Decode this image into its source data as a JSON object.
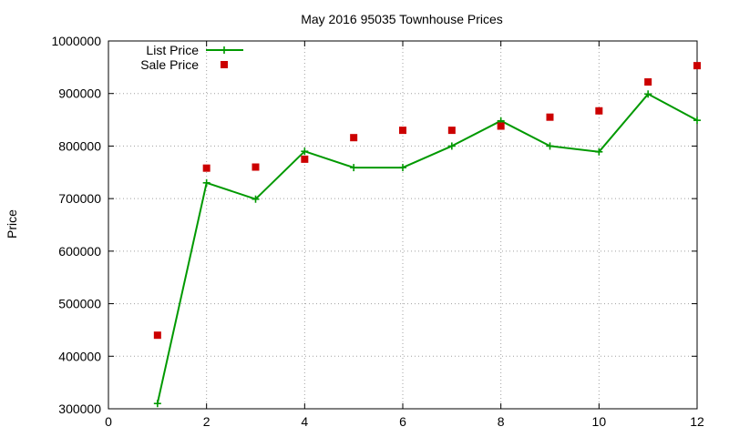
{
  "chart_data": {
    "type": "line",
    "title": "May 2016 95035 Townhouse Prices",
    "xlabel": "",
    "ylabel": "Price",
    "xlim": [
      0,
      12
    ],
    "ylim": [
      300000,
      1000000
    ],
    "xticks": [
      0,
      2,
      4,
      6,
      8,
      10,
      12
    ],
    "yticks": [
      300000,
      400000,
      500000,
      600000,
      700000,
      800000,
      900000,
      1000000
    ],
    "grid": true,
    "legend_position": "top-left",
    "series": [
      {
        "name": "List Price",
        "style": "linespoints",
        "marker": "plus",
        "color": "#009900",
        "x": [
          1,
          2,
          3,
          4,
          5,
          6,
          7,
          8,
          9,
          10,
          11,
          12
        ],
        "values": [
          310000,
          730000,
          699000,
          790000,
          759000,
          759000,
          800000,
          848000,
          800000,
          789000,
          899000,
          849000
        ]
      },
      {
        "name": "Sale Price",
        "style": "points",
        "marker": "square",
        "color": "#cc0000",
        "x": [
          1,
          2,
          3,
          4,
          5,
          6,
          7,
          8,
          9,
          10,
          11,
          12
        ],
        "values": [
          440000,
          758000,
          760000,
          775000,
          816000,
          830000,
          830000,
          838000,
          855000,
          867000,
          922000,
          953000
        ]
      }
    ]
  }
}
